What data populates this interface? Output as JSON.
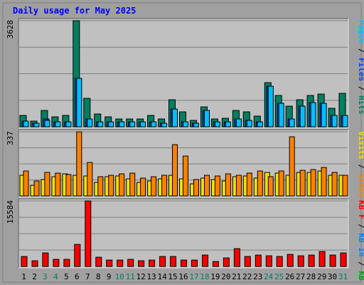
{
  "chart_data": {
    "type": "bar",
    "title": "Daily usage for May 2025",
    "days": [
      "1",
      "2",
      "3",
      "4",
      "5",
      "6",
      "7",
      "8",
      "9",
      "10",
      "11",
      "12",
      "13",
      "14",
      "15",
      "16",
      "17",
      "18",
      "19",
      "20",
      "21",
      "22",
      "23",
      "24",
      "25",
      "26",
      "27",
      "28",
      "29",
      "30",
      "31"
    ],
    "weekend_days": [
      3,
      4,
      10,
      11,
      17,
      18,
      24,
      25,
      31
    ],
    "grid": true,
    "panels": [
      {
        "id": "hits",
        "ymax_label": "3628",
        "ymax": 3628,
        "right_legend": [
          {
            "text": "Pages",
            "color": "#00c0ff"
          },
          {
            "text": " / ",
            "color": "#000000"
          },
          {
            "text": "Files",
            "color": "#0040ff"
          },
          {
            "text": " / ",
            "color": "#000000"
          },
          {
            "text": "Hits",
            "color": "#008060"
          }
        ],
        "series": [
          {
            "name": "Hits",
            "color": "#008060",
            "values": [
              380,
              190,
              570,
              330,
              380,
              3628,
              970,
              430,
              330,
              270,
              270,
              270,
              380,
              270,
              920,
              520,
              210,
              680,
              270,
              300,
              570,
              520,
              370,
              1500,
              1060,
              700,
              920,
              1060,
              1110,
              630,
              1140
            ]
          },
          {
            "name": "Files",
            "color": "#0040ff",
            "values": [
              190,
              110,
              280,
              160,
              160,
              1650,
              270,
              160,
              160,
              160,
              160,
              160,
              160,
              110,
              610,
              160,
              110,
              560,
              160,
              160,
              270,
              220,
              160,
              1380,
              810,
              270,
              700,
              820,
              810,
              380,
              380
            ]
          },
          {
            "name": "Pages",
            "color": "#00c0ff",
            "values": [
              190,
              110,
              230,
              160,
              160,
              1650,
              270,
              160,
              160,
              160,
              160,
              160,
              160,
              110,
              610,
              160,
              110,
              560,
              160,
              160,
              270,
              220,
              160,
              1380,
              810,
              270,
              700,
              820,
              810,
              380,
              380
            ]
          }
        ]
      },
      {
        "id": "visits",
        "ymax_label": "337",
        "ymax": 337,
        "right_legend": [
          {
            "text": "Visits",
            "color": "#f0e000"
          },
          {
            "text": " / ",
            "color": "#000000"
          },
          {
            "text": "Sites",
            "color": "#ff8000"
          }
        ],
        "series": [
          {
            "name": "Visits",
            "color": "#f0e000",
            "values": [
              107,
              55,
              85,
              100,
              115,
              110,
              105,
              70,
              100,
              105,
              90,
              70,
              80,
              90,
              110,
              90,
              65,
              95,
              85,
              80,
              100,
              105,
              95,
              125,
              120,
              110,
              125,
              125,
              130,
              110,
              110
            ]
          },
          {
            "name": "Sites",
            "color": "#ff8000",
            "values": [
              130,
              80,
              125,
              120,
              113,
              337,
              175,
              100,
              110,
              115,
              120,
              95,
              100,
              110,
              270,
              210,
              85,
              110,
              105,
              115,
              110,
              120,
              130,
              100,
              130,
              310,
              135,
              140,
              150,
              125,
              110
            ]
          }
        ]
      },
      {
        "id": "kbytes",
        "ymax_label": "15584",
        "ymax": 15584,
        "right_legend": [
          {
            "text": "KB F",
            "color": "#ff0000"
          },
          {
            "text": " / ",
            "color": "#000000"
          },
          {
            "text": "KB In",
            "color": "#0080ff"
          },
          {
            "text": " / ",
            "color": "#000000"
          },
          {
            "text": "KB Out",
            "color": "#00a000"
          }
        ],
        "series": [
          {
            "name": "KB F",
            "color": "#ff0000",
            "values": [
              2300,
              1400,
              3300,
              1700,
              1700,
              5300,
              15584,
              2200,
              1600,
              1500,
              1700,
              1400,
              1600,
              2400,
              2400,
              1600,
              1500,
              2700,
              1200,
              2100,
              4300,
              2400,
              2700,
              2600,
              2300,
              2800,
              2500,
              2700,
              3500,
              2700,
              3200
            ]
          }
        ]
      }
    ]
  },
  "colors": {
    "page_bg": "#ffffff",
    "frame": "#a0a0a0",
    "plot_bg": "#c0c0c0",
    "grid": "#808080",
    "title": "#0000ff",
    "weekday_label": "#000000",
    "weekend_label": "#008060",
    "axis_label": "#000000"
  }
}
